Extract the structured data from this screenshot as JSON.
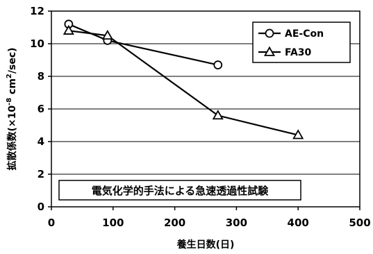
{
  "chart_data": {
    "type": "line",
    "title": "",
    "xlabel": "養生日数(日)",
    "ylabel_main": "拡散係数(×10",
    "ylabel_exp": "-8",
    "ylabel_mid": " cm",
    "ylabel_exp2": "2",
    "ylabel_end": "/sec)",
    "xlim": [
      0,
      500
    ],
    "ylim": [
      0,
      12
    ],
    "x_ticks": [
      0,
      100,
      200,
      300,
      400,
      500
    ],
    "y_ticks": [
      0,
      2,
      4,
      6,
      8,
      10,
      12
    ],
    "x_tick_labels": [
      "0",
      "100",
      "200",
      "300",
      "400",
      "500"
    ],
    "y_tick_labels": [
      "0",
      "2",
      "4",
      "6",
      "8",
      "10",
      "12"
    ],
    "grid": "horizontal",
    "legend_position": "top-right",
    "annotation": "電気化学的手法による急速透過性試験",
    "series": [
      {
        "name": "AE-Con",
        "marker": "circle",
        "x": [
          28,
          91,
          270
        ],
        "y": [
          11.2,
          10.2,
          8.7
        ]
      },
      {
        "name": "FA30",
        "marker": "triangle",
        "x": [
          28,
          91,
          270,
          400
        ],
        "y": [
          10.8,
          10.5,
          5.6,
          4.4
        ]
      }
    ]
  }
}
